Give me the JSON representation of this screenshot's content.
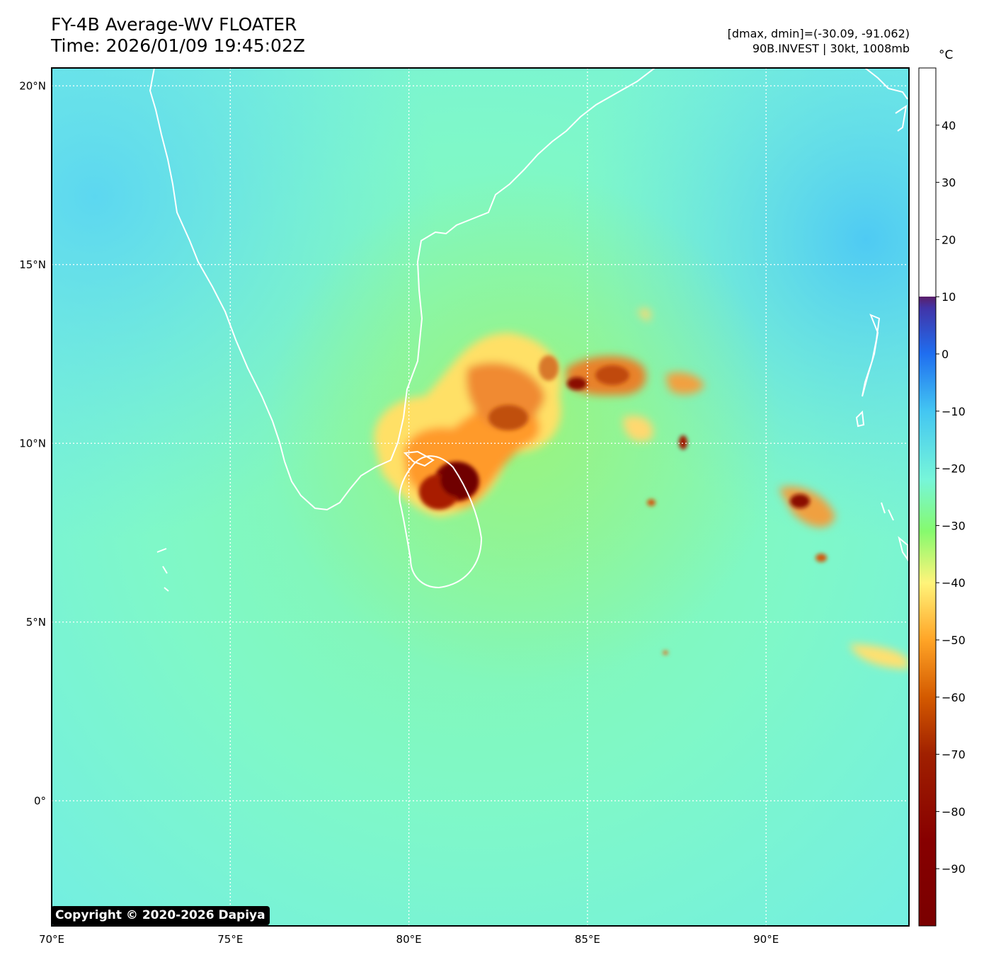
{
  "header": {
    "title_line1": "FY-4B Average-WV FLOATER",
    "title_line2": "Time: 2026/01/09 19:45:02Z",
    "range_text": "[dmax, dmin]=(-30.09, -91.062)",
    "storm_text": "90B.INVEST | 30kt, 1008mb"
  },
  "map": {
    "lon_range": [
      70,
      94
    ],
    "lat_range": [
      -3.5,
      20.5
    ],
    "lon_ticks": [
      {
        "value": 70,
        "label": "70°E"
      },
      {
        "value": 75,
        "label": "75°E"
      },
      {
        "value": 80,
        "label": "80°E"
      },
      {
        "value": 85,
        "label": "85°E"
      },
      {
        "value": 90,
        "label": "90°E"
      }
    ],
    "lat_ticks": [
      {
        "value": 20,
        "label": "20°N"
      },
      {
        "value": 15,
        "label": "15°N"
      },
      {
        "value": 10,
        "label": "10°N"
      },
      {
        "value": 5,
        "label": "5°N"
      },
      {
        "value": 0,
        "label": "0°"
      }
    ],
    "gridlines": true,
    "coastline_color": "#ffffff"
  },
  "colorbar": {
    "unit": "°C",
    "range": [
      -100,
      50
    ],
    "ticks": [
      40,
      30,
      20,
      10,
      0,
      -10,
      -20,
      -30,
      -40,
      -50,
      -60,
      -70,
      -80,
      -90
    ],
    "tick_labels": [
      "40",
      "30",
      "20",
      "10",
      "0",
      "−10",
      "−20",
      "−30",
      "−40",
      "−50",
      "−60",
      "−70",
      "−80",
      "−90"
    ]
  },
  "footer": {
    "copyright": "Copyright © 2020-2026 Dapiya"
  }
}
